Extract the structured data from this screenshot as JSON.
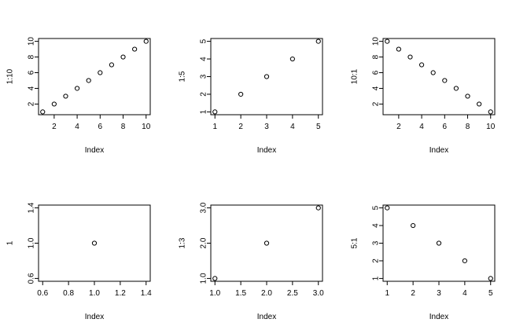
{
  "chart_data": [
    {
      "type": "scatter",
      "xlabel": "Index",
      "ylabel": "1:10",
      "x": [
        1,
        2,
        3,
        4,
        5,
        6,
        7,
        8,
        9,
        10
      ],
      "y": [
        1,
        2,
        3,
        4,
        5,
        6,
        7,
        8,
        9,
        10
      ],
      "xlim": [
        0.64,
        10.36
      ],
      "ylim": [
        0.64,
        10.36
      ],
      "xticks": [
        2,
        4,
        6,
        8,
        10
      ],
      "yticks": [
        2,
        4,
        6,
        8,
        10
      ],
      "xtick_labels": [
        "2",
        "4",
        "6",
        "8",
        "10"
      ],
      "ytick_labels": [
        "2",
        "4",
        "6",
        "8",
        "10"
      ],
      "marker": "open-circle",
      "grid": false
    },
    {
      "type": "scatter",
      "xlabel": "Index",
      "ylabel": "1:5",
      "x": [
        1,
        2,
        3,
        4,
        5
      ],
      "y": [
        1,
        2,
        3,
        4,
        5
      ],
      "xlim": [
        0.84,
        5.16
      ],
      "ylim": [
        0.84,
        5.16
      ],
      "xticks": [
        1,
        2,
        3,
        4,
        5
      ],
      "yticks": [
        1,
        2,
        3,
        4,
        5
      ],
      "xtick_labels": [
        "1",
        "2",
        "3",
        "4",
        "5"
      ],
      "ytick_labels": [
        "1",
        "2",
        "3",
        "4",
        "5"
      ],
      "marker": "open-circle",
      "grid": false
    },
    {
      "type": "scatter",
      "xlabel": "Index",
      "ylabel": "10:1",
      "x": [
        1,
        2,
        3,
        4,
        5,
        6,
        7,
        8,
        9,
        10
      ],
      "y": [
        10,
        9,
        8,
        7,
        6,
        5,
        4,
        3,
        2,
        1
      ],
      "xlim": [
        0.64,
        10.36
      ],
      "ylim": [
        0.64,
        10.36
      ],
      "xticks": [
        2,
        4,
        6,
        8,
        10
      ],
      "yticks": [
        2,
        4,
        6,
        8,
        10
      ],
      "xtick_labels": [
        "2",
        "4",
        "6",
        "8",
        "10"
      ],
      "ytick_labels": [
        "2",
        "4",
        "6",
        "8",
        "10"
      ],
      "marker": "open-circle",
      "grid": false
    },
    {
      "type": "scatter",
      "xlabel": "Index",
      "ylabel": "1",
      "x": [
        1
      ],
      "y": [
        1
      ],
      "xlim": [
        0.568,
        1.432
      ],
      "ylim": [
        0.568,
        1.432
      ],
      "xticks": [
        0.6,
        0.8,
        1.0,
        1.2,
        1.4
      ],
      "yticks": [
        0.6,
        1.0,
        1.4
      ],
      "xtick_labels": [
        "0.6",
        "0.8",
        "1.0",
        "1.2",
        "1.4"
      ],
      "ytick_labels": [
        "0.6",
        "1.0",
        "1.4"
      ],
      "marker": "open-circle",
      "grid": false
    },
    {
      "type": "scatter",
      "xlabel": "Index",
      "ylabel": "1:3",
      "x": [
        1,
        2,
        3
      ],
      "y": [
        1,
        2,
        3
      ],
      "xlim": [
        0.92,
        3.08
      ],
      "ylim": [
        0.92,
        3.08
      ],
      "xticks": [
        1.0,
        1.5,
        2.0,
        2.5,
        3.0
      ],
      "yticks": [
        1.0,
        2.0,
        3.0
      ],
      "xtick_labels": [
        "1.0",
        "1.5",
        "2.0",
        "2.5",
        "3.0"
      ],
      "ytick_labels": [
        "1.0",
        "2.0",
        "3.0"
      ],
      "marker": "open-circle",
      "grid": false
    },
    {
      "type": "scatter",
      "xlabel": "Index",
      "ylabel": "5:1",
      "x": [
        1,
        2,
        3,
        4,
        5
      ],
      "y": [
        5,
        4,
        3,
        2,
        1
      ],
      "xlim": [
        0.84,
        5.16
      ],
      "ylim": [
        0.84,
        5.16
      ],
      "xticks": [
        1,
        2,
        3,
        4,
        5
      ],
      "yticks": [
        1,
        2,
        3,
        4,
        5
      ],
      "xtick_labels": [
        "1",
        "2",
        "3",
        "4",
        "5"
      ],
      "ytick_labels": [
        "1",
        "2",
        "3",
        "4",
        "5"
      ],
      "marker": "open-circle",
      "grid": false
    }
  ]
}
